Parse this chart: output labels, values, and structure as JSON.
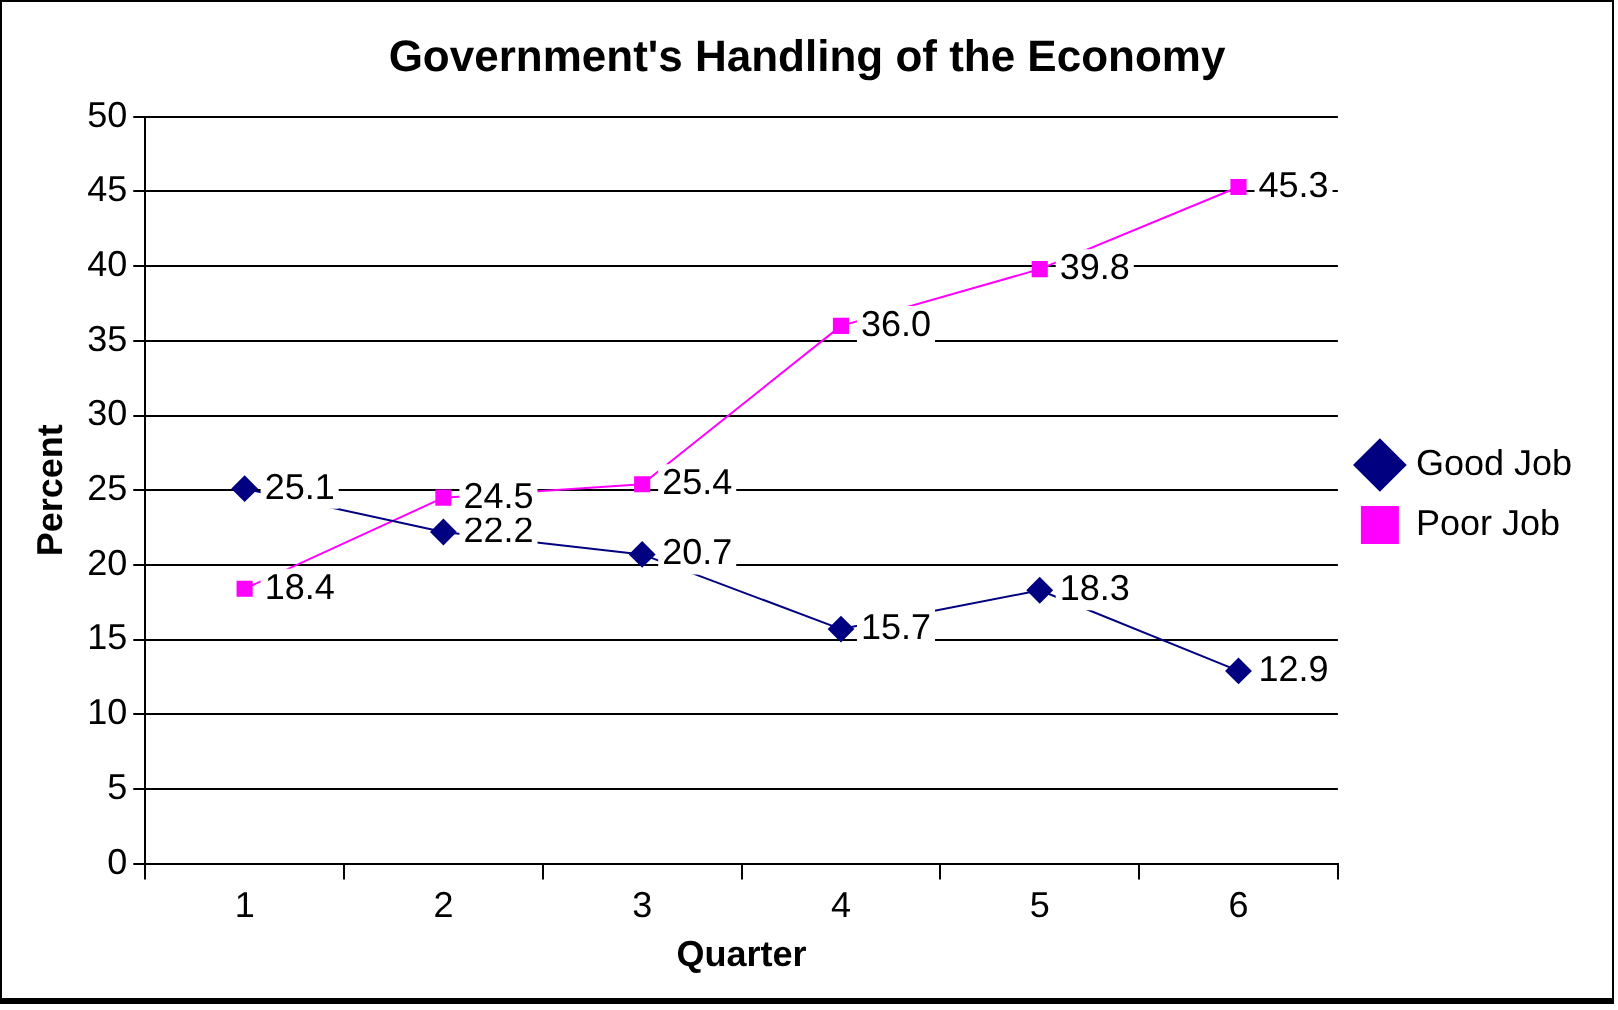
{
  "chart_data": {
    "type": "line",
    "title": "Government's Handling of the Economy",
    "xlabel": "Quarter",
    "ylabel": "Percent",
    "categories": [
      "1",
      "2",
      "3",
      "4",
      "5",
      "6"
    ],
    "series": [
      {
        "name": "Good Job",
        "color": "#000080",
        "marker": "diamond",
        "values": [
          25.1,
          22.2,
          20.7,
          15.7,
          18.3,
          12.9
        ],
        "value_labels": [
          "25.1",
          "22.2",
          "20.7",
          "15.7",
          "18.3",
          "12.9"
        ]
      },
      {
        "name": "Poor Job",
        "color": "#ff00ff",
        "marker": "square",
        "values": [
          18.4,
          24.5,
          25.4,
          36.0,
          39.8,
          45.3
        ],
        "value_labels": [
          "18.4",
          "24.5",
          "25.4",
          "36.0",
          "39.8",
          "45.3"
        ]
      }
    ],
    "ylim": [
      0,
      50
    ],
    "yticks": [
      0,
      5,
      10,
      15,
      20,
      25,
      30,
      35,
      40,
      45,
      50
    ],
    "grid": "y",
    "legend": "right",
    "line_style": "solid"
  }
}
